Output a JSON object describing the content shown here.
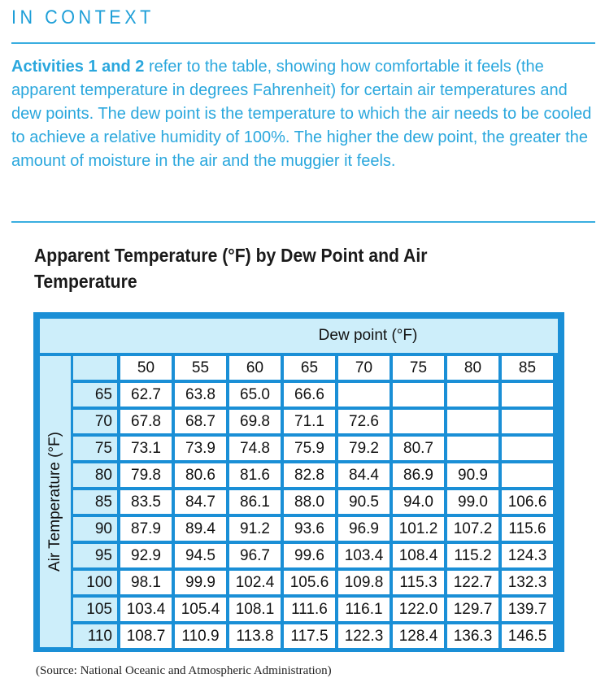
{
  "header": {
    "label": "IN CONTEXT"
  },
  "intro": {
    "bold": "Activities 1 and 2",
    "text": " refer to the table, showing how comfortable it feels (the apparent temperature in degrees Fahrenheit) for certain air temperatures and dew points. The dew point is the temperature to which the air needs to be cooled to achieve a relative humidity of 100%. The higher the dew point, the greater the amount of moisture in the air and the muggier it feels."
  },
  "table": {
    "title": "Apparent Temperature (°F) by Dew Point and Air Temperature",
    "column_header": "Dew point (°F)",
    "row_header": "Air Temperature (°F)",
    "dew_points": [
      "50",
      "55",
      "60",
      "65",
      "70",
      "75",
      "80",
      "85"
    ],
    "rows": [
      {
        "air": "65",
        "values": [
          "62.7",
          "63.8",
          "65.0",
          "66.6",
          "",
          "",
          "",
          ""
        ]
      },
      {
        "air": "70",
        "values": [
          "67.8",
          "68.7",
          "69.8",
          "71.1",
          "72.6",
          "",
          "",
          ""
        ]
      },
      {
        "air": "75",
        "values": [
          "73.1",
          "73.9",
          "74.8",
          "75.9",
          "79.2",
          "80.7",
          "",
          ""
        ]
      },
      {
        "air": "80",
        "values": [
          "79.8",
          "80.6",
          "81.6",
          "82.8",
          "84.4",
          "86.9",
          "90.9",
          ""
        ]
      },
      {
        "air": "85",
        "values": [
          "83.5",
          "84.7",
          "86.1",
          "88.0",
          "90.5",
          "94.0",
          "99.0",
          "106.6"
        ]
      },
      {
        "air": "90",
        "values": [
          "87.9",
          "89.4",
          "91.2",
          "93.6",
          "96.9",
          "101.2",
          "107.2",
          "115.6"
        ]
      },
      {
        "air": "95",
        "values": [
          "92.9",
          "94.5",
          "96.7",
          "99.6",
          "103.4",
          "108.4",
          "115.2",
          "124.3"
        ]
      },
      {
        "air": "100",
        "values": [
          "98.1",
          "99.9",
          "102.4",
          "105.6",
          "109.8",
          "115.3",
          "122.7",
          "132.3"
        ]
      },
      {
        "air": "105",
        "values": [
          "103.4",
          "105.4",
          "108.1",
          "111.6",
          "116.1",
          "122.0",
          "129.7",
          "139.7"
        ]
      },
      {
        "air": "110",
        "values": [
          "108.7",
          "110.9",
          "113.8",
          "117.5",
          "122.3",
          "128.4",
          "136.3",
          "146.5"
        ]
      }
    ],
    "source": "(Source: National Oceanic and Atmospheric Administration)"
  },
  "colors": {
    "accent": "#2aa7dd",
    "table_frame": "#1a8fd6",
    "header_fill": "#cdeefa"
  }
}
